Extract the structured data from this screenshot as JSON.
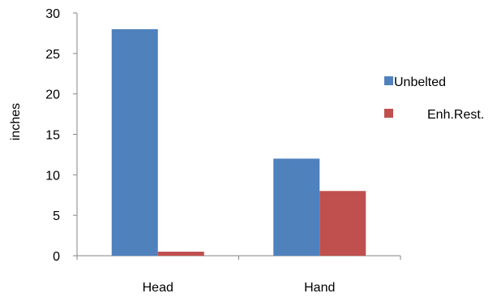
{
  "chart_data": {
    "type": "bar",
    "categories": [
      "Head",
      "Hand"
    ],
    "series": [
      {
        "name": "Unbelted",
        "values": [
          28,
          12
        ],
        "color": "#4F81BD"
      },
      {
        "name": "Enh.Rest.",
        "values": [
          0.5,
          8
        ],
        "color": "#C0504D"
      }
    ],
    "title": "",
    "xlabel": "",
    "ylabel": "inches",
    "ylim": [
      0,
      30
    ],
    "yticks": [
      0,
      5,
      10,
      15,
      20,
      25,
      30
    ],
    "grid": false,
    "legend": "right"
  }
}
